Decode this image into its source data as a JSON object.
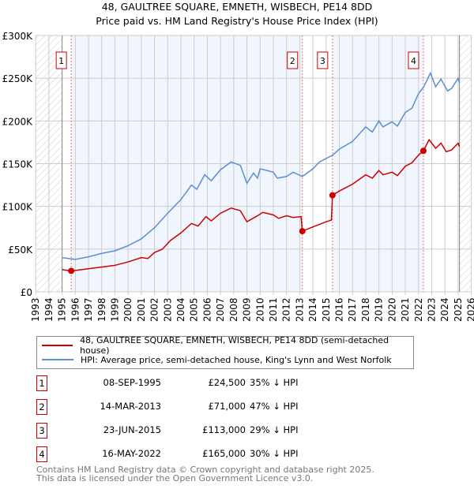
{
  "chart_data": {
    "type": "line",
    "title": "48, GAULTREE SQUARE, EMNETH, WISBECH, PE14 8DD",
    "subtitle": "Price paid vs. HM Land Registry's House Price Index (HPI)",
    "xlim": [
      1993,
      2026
    ],
    "ylim": [
      0,
      300000
    ],
    "x_ticks": [
      "1993",
      "1994",
      "1995",
      "1996",
      "1997",
      "1998",
      "1999",
      "2000",
      "2001",
      "2002",
      "2003",
      "2004",
      "2005",
      "2006",
      "2007",
      "2008",
      "2009",
      "2010",
      "2011",
      "2012",
      "2013",
      "2014",
      "2015",
      "2016",
      "2017",
      "2018",
      "2019",
      "2020",
      "2021",
      "2022",
      "2023",
      "2024",
      "2025",
      "2026"
    ],
    "y_ticks": [
      {
        "v": 0,
        "label": "£0"
      },
      {
        "v": 50000,
        "label": "£50K"
      },
      {
        "v": 100000,
        "label": "£100K"
      },
      {
        "v": 150000,
        "label": "£150K"
      },
      {
        "v": 200000,
        "label": "£200K"
      },
      {
        "v": 250000,
        "label": "£250K"
      },
      {
        "v": 300000,
        "label": "£300K"
      }
    ],
    "grid": true,
    "series": [
      {
        "name": "48, GAULTREE SQUARE, EMNETH, WISBECH, PE14 8DD (semi-detached house)",
        "color": "#cc0000",
        "x": [
          1995.0,
          1995.69,
          1996,
          1997,
          1998,
          1999,
          2000,
          2001,
          2001.5,
          2002,
          2002.6,
          2003.2,
          2004,
          2004.8,
          2005.3,
          2005.9,
          2006.3,
          2007,
          2007.8,
          2008.5,
          2009,
          2009.8,
          2010.2,
          2011,
          2011.4,
          2012,
          2012.5,
          2013.1,
          2013.2,
          2014,
          2015,
          2015.4,
          2015.48,
          2016,
          2017,
          2018,
          2018.5,
          2019,
          2019.3,
          2020,
          2020.4,
          2021,
          2021.5,
          2022,
          2022.37,
          2022.8,
          2023.3,
          2023.7,
          2024.1,
          2024.5,
          2025,
          2025.1
        ],
        "y": [
          26000,
          24500,
          25000,
          27000,
          29000,
          31000,
          35000,
          40000,
          39000,
          46000,
          50000,
          60000,
          69000,
          80000,
          77000,
          88000,
          83000,
          92000,
          98000,
          95000,
          82000,
          89000,
          93000,
          90000,
          86000,
          89000,
          87000,
          88000,
          71000,
          76000,
          82000,
          84000,
          113000,
          118000,
          126000,
          137000,
          133000,
          142000,
          137000,
          140000,
          136000,
          147000,
          151000,
          160000,
          165000,
          178000,
          168000,
          174000,
          164000,
          166000,
          174000,
          170000
        ]
      },
      {
        "name": "HPI: Average price, semi-detached house, King's Lynn and West Norfolk",
        "color": "#5b8fd0",
        "x": [
          1995.0,
          1996,
          1997,
          1998,
          1999,
          2000,
          2001,
          2002,
          2003,
          2004,
          2004.8,
          2005.2,
          2005.8,
          2006.3,
          2007,
          2007.8,
          2008.5,
          2009.0,
          2009.5,
          2009.8,
          2010.0,
          2011,
          2011.3,
          2012,
          2012.5,
          2013.2,
          2014,
          2014.5,
          2015.5,
          2016,
          2017,
          2018,
          2018.5,
          2019,
          2019.3,
          2020,
          2020.4,
          2021,
          2021.5,
          2022,
          2022.4,
          2022.9,
          2023.3,
          2023.7,
          2024.2,
          2024.5,
          2025,
          2025.1
        ],
        "y": [
          40000,
          38000,
          41000,
          45000,
          48000,
          54000,
          62000,
          75000,
          92000,
          108000,
          125000,
          120000,
          137000,
          130000,
          143000,
          152000,
          148000,
          127000,
          139000,
          133000,
          144000,
          140000,
          133000,
          135000,
          140000,
          135000,
          144000,
          152000,
          160000,
          167000,
          176000,
          193000,
          187000,
          200000,
          193000,
          199000,
          194000,
          210000,
          215000,
          232000,
          240000,
          256000,
          240000,
          249000,
          235000,
          238000,
          250000,
          245000
        ]
      }
    ],
    "sales": [
      {
        "label": "1",
        "x": 1995.69,
        "y": 24500,
        "date": "08-SEP-1995",
        "price": "£24,500",
        "hpi": "35% ↓ HPI"
      },
      {
        "label": "2",
        "x": 2013.2,
        "y": 71000,
        "date": "14-MAR-2013",
        "price": "£71,000",
        "hpi": "47% ↓ HPI"
      },
      {
        "label": "3",
        "x": 2015.48,
        "y": 113000,
        "date": "23-JUN-2015",
        "price": "£113,000",
        "hpi": "29% ↓ HPI"
      },
      {
        "label": "4",
        "x": 2022.37,
        "y": 165000,
        "date": "16-MAY-2022",
        "price": "£165,000",
        "hpi": "30% ↓ HPI"
      }
    ],
    "data_range": [
      1995.0,
      2025.1
    ],
    "legend_position": "below"
  },
  "footer": {
    "line1": "Contains HM Land Registry data © Crown copyright and database right 2025.",
    "line2": "This data is licensed under the Open Government Licence v3.0."
  }
}
